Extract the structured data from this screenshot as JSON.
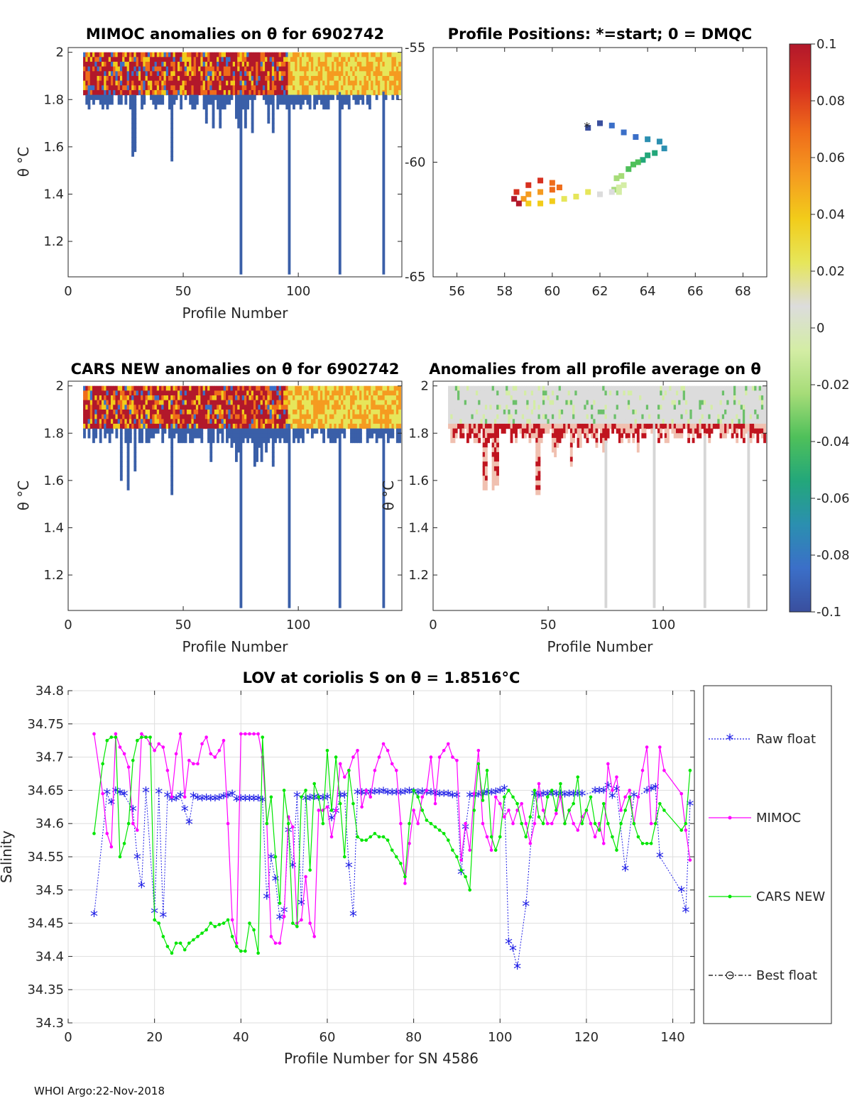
{
  "footer": "WHOI Argo:22-Nov-2018",
  "colorbar": {
    "ticks": [
      "0.1",
      "0.08",
      "0.06",
      "0.04",
      "0.02",
      "0",
      "-0.02",
      "-0.04",
      "-0.06",
      "-0.08",
      "-0.1"
    ],
    "colors": [
      "#b2182b",
      "#d7301f",
      "#ef6c1a",
      "#f59b20",
      "#f2cc1a",
      "#e6e65a",
      "#dcdcdc",
      "#d4eda5",
      "#a6dc78",
      "#4fc05a",
      "#23a77a",
      "#2b8fb0",
      "#3b6fc8",
      "#3a4f9e"
    ]
  },
  "chart_data": [
    {
      "id": "mimoc",
      "type": "heatmap",
      "title": "MIMOC anomalies on θ  for 6902742",
      "xlabel": "Profile Number",
      "ylabel": "θ °C",
      "xlim": [
        0,
        145
      ],
      "ylim": [
        1.05,
        2.02
      ],
      "xticks": [
        "0",
        "50",
        "100"
      ],
      "yticks": [
        "1.2",
        "1.4",
        "1.6",
        "1.8",
        "2"
      ]
    },
    {
      "id": "positions",
      "type": "scatter",
      "title": "Profile Positions: *=start; 0 = DMQC",
      "xlim": [
        55,
        69
      ],
      "ylim": [
        -65,
        -55
      ],
      "xticks": [
        "56",
        "58",
        "60",
        "62",
        "64",
        "66",
        "68"
      ],
      "yticks": [
        "-55",
        "-60",
        "-65"
      ],
      "track": {
        "lon": [
          61.5,
          62.0,
          62.5,
          63.0,
          63.5,
          64.0,
          64.5,
          64.7,
          64.3,
          64.0,
          63.8,
          63.6,
          63.4,
          63.2,
          62.9,
          62.7,
          62.6,
          62.8,
          63.0,
          62.8,
          62.5,
          62.0,
          61.5,
          61.0,
          60.5,
          60.0,
          59.5,
          59.0,
          58.8,
          59.0,
          59.5,
          60.0,
          60.3,
          60.0,
          59.5,
          59.0,
          58.5,
          58.4,
          58.6
        ],
        "lat": [
          -58.5,
          -58.3,
          -58.4,
          -58.7,
          -58.9,
          -59.0,
          -59.1,
          -59.4,
          -59.6,
          -59.7,
          -59.9,
          -60.0,
          -60.1,
          -60.3,
          -60.6,
          -60.7,
          -61.2,
          -61.3,
          -61.0,
          -61.1,
          -61.3,
          -61.4,
          -61.3,
          -61.5,
          -61.6,
          -61.7,
          -61.8,
          -61.8,
          -61.6,
          -61.4,
          -61.3,
          -61.2,
          -61.1,
          -60.9,
          -60.8,
          -61.0,
          -61.3,
          -61.6,
          -61.8
        ]
      }
    },
    {
      "id": "cars",
      "type": "heatmap",
      "title": "CARS NEW anomalies on θ for 6902742",
      "xlabel": "Profile Number",
      "ylabel": "θ °C",
      "xlim": [
        0,
        145
      ],
      "ylim": [
        1.05,
        2.02
      ],
      "xticks": [
        "0",
        "50",
        "100"
      ],
      "yticks": [
        "1.2",
        "1.4",
        "1.6",
        "1.8",
        "2"
      ]
    },
    {
      "id": "allavg",
      "type": "heatmap",
      "title": "Anomalies from all profile average on θ",
      "xlabel": "Profile Number",
      "ylabel": "θ °C",
      "xlim": [
        0,
        145
      ],
      "ylim": [
        1.05,
        2.02
      ],
      "xticks": [
        "0",
        "50",
        "100"
      ],
      "yticks": [
        "1.2",
        "1.4",
        "1.6",
        "1.8",
        "2"
      ]
    },
    {
      "id": "lov",
      "type": "line",
      "title": "LOV at coriolis S on θ = 1.8516°C",
      "xlabel": "Profile Number for SN 4586",
      "ylabel": "Salinity",
      "xlim": [
        0,
        145
      ],
      "ylim": [
        34.3,
        34.8
      ],
      "xticks": [
        "0",
        "20",
        "40",
        "60",
        "80",
        "100",
        "120",
        "140"
      ],
      "yticks": [
        "34.3",
        "34.35",
        "34.4",
        "34.45",
        "34.5",
        "34.55",
        "34.6",
        "34.65",
        "34.7",
        "34.75",
        "34.8"
      ],
      "series": [
        {
          "name": "Raw float",
          "color": "#1f1fe6",
          "x": [
            6,
            9,
            10,
            11,
            12,
            13,
            15,
            16,
            17,
            18,
            20,
            21,
            22,
            23,
            24,
            25,
            26,
            27,
            28,
            29,
            30,
            31,
            32,
            33,
            34,
            35,
            36,
            37,
            38,
            39,
            40,
            41,
            42,
            43,
            44,
            45,
            46,
            47,
            48,
            49,
            50,
            51,
            52,
            53,
            54,
            55,
            56,
            57,
            58,
            59,
            60,
            61,
            62,
            63,
            64,
            65,
            66,
            67,
            68,
            69,
            70,
            71,
            72,
            73,
            74,
            75,
            76,
            77,
            78,
            79,
            80,
            81,
            82,
            83,
            84,
            85,
            86,
            87,
            88,
            89,
            90,
            91,
            92,
            93,
            94,
            95,
            96,
            97,
            98,
            99,
            100,
            101,
            102,
            103,
            104,
            106,
            108,
            109,
            110,
            111,
            112,
            113,
            114,
            115,
            116,
            117,
            118,
            119,
            122,
            123,
            124,
            125,
            126,
            127,
            129,
            131,
            134,
            135,
            136,
            137,
            142,
            143,
            144
          ],
          "values": [
            34.462,
            34.645,
            34.63,
            34.648,
            34.645,
            34.643,
            34.62,
            34.548,
            34.505,
            34.648,
            34.466,
            34.646,
            34.46,
            34.641,
            34.635,
            34.636,
            34.641,
            34.62,
            34.6,
            34.64,
            34.637,
            34.636,
            34.637,
            34.636,
            34.636,
            34.637,
            34.639,
            34.641,
            34.643,
            34.635,
            34.636,
            34.636,
            34.636,
            34.636,
            34.636,
            34.634,
            34.488,
            34.548,
            34.515,
            34.457,
            34.468,
            34.588,
            34.535,
            34.641,
            34.479,
            34.636,
            34.637,
            34.638,
            34.637,
            34.637,
            34.638,
            34.606,
            34.617,
            34.641,
            34.641,
            34.535,
            34.462,
            34.645,
            34.645,
            34.645,
            34.645,
            34.646,
            34.646,
            34.647,
            34.645,
            34.645,
            34.645,
            34.645,
            34.646,
            34.647,
            34.646,
            34.645,
            34.646,
            34.645,
            34.645,
            34.644,
            34.643,
            34.643,
            34.643,
            34.641,
            34.641,
            34.525,
            34.593,
            34.641,
            34.641,
            34.642,
            34.643,
            34.645,
            34.645,
            34.646,
            34.648,
            34.651,
            34.42,
            34.41,
            34.383,
            34.477,
            34.643,
            34.641,
            34.643,
            34.643,
            34.644,
            34.643,
            34.643,
            34.642,
            34.643,
            34.643,
            34.643,
            34.643,
            34.648,
            34.648,
            34.648,
            34.655,
            34.64,
            34.65,
            34.53,
            34.641,
            34.648,
            34.651,
            34.653,
            34.55,
            34.498,
            34.468,
            34.628
          ]
        },
        {
          "name": "MIMOC",
          "color": "#ff00ff",
          "x": [
            6,
            8,
            9,
            10,
            11,
            12,
            13,
            14,
            15,
            16,
            17,
            18,
            19,
            20,
            21,
            22,
            23,
            24,
            25,
            26,
            27,
            28,
            29,
            30,
            31,
            32,
            33,
            34,
            35,
            36,
            37,
            38,
            39,
            40,
            41,
            42,
            43,
            44,
            45,
            46,
            47,
            48,
            49,
            50,
            51,
            52,
            53,
            54,
            55,
            56,
            57,
            58,
            59,
            60,
            61,
            62,
            63,
            64,
            65,
            66,
            67,
            68,
            69,
            70,
            71,
            72,
            73,
            74,
            75,
            76,
            77,
            78,
            79,
            80,
            81,
            82,
            83,
            84,
            85,
            86,
            87,
            88,
            89,
            90,
            91,
            92,
            93,
            94,
            95,
            96,
            97,
            98,
            99,
            100,
            101,
            102,
            103,
            104,
            105,
            106,
            107,
            108,
            109,
            110,
            111,
            112,
            113,
            114,
            115,
            116,
            117,
            118,
            119,
            120,
            121,
            122,
            123,
            124,
            125,
            126,
            127,
            128,
            129,
            130,
            131,
            132,
            133,
            134,
            135,
            136,
            137,
            138,
            142,
            143,
            144
          ],
          "values": [
            34.735,
            34.645,
            34.585,
            34.565,
            34.735,
            34.715,
            34.705,
            34.685,
            34.6,
            34.59,
            34.735,
            34.73,
            34.72,
            34.71,
            34.72,
            34.715,
            34.68,
            34.64,
            34.705,
            34.735,
            34.64,
            34.695,
            34.69,
            34.69,
            34.72,
            34.73,
            34.705,
            34.7,
            34.71,
            34.725,
            34.6,
            34.455,
            34.42,
            34.735,
            34.735,
            34.735,
            34.735,
            34.735,
            34.7,
            34.6,
            34.43,
            34.42,
            34.42,
            34.46,
            34.61,
            34.595,
            34.45,
            34.455,
            34.52,
            34.45,
            34.43,
            34.62,
            34.62,
            34.625,
            34.58,
            34.62,
            34.69,
            34.67,
            34.68,
            34.7,
            34.71,
            34.625,
            34.65,
            34.64,
            34.68,
            34.7,
            34.72,
            34.71,
            34.69,
            34.68,
            34.6,
            34.51,
            34.57,
            34.62,
            34.6,
            34.64,
            34.65,
            34.7,
            34.63,
            34.7,
            34.71,
            34.72,
            34.7,
            34.695,
            34.545,
            34.6,
            34.56,
            34.645,
            34.71,
            34.6,
            34.58,
            34.56,
            34.64,
            34.63,
            34.61,
            34.62,
            34.6,
            34.62,
            34.63,
            34.6,
            34.57,
            34.6,
            34.66,
            34.62,
            34.6,
            34.6,
            34.615,
            34.64,
            34.6,
            34.62,
            34.6,
            34.59,
            34.61,
            34.62,
            34.6,
            34.58,
            34.6,
            34.57,
            34.69,
            34.65,
            34.67,
            34.62,
            34.64,
            34.65,
            34.6,
            34.64,
            34.68,
            34.715,
            34.6,
            34.6,
            34.715,
            34.68,
            34.645,
            34.59,
            34.545
          ]
        },
        {
          "name": "CARS NEW",
          "color": "#00e600",
          "x": [
            6,
            8,
            9,
            10,
            11,
            12,
            13,
            14,
            15,
            16,
            17,
            18,
            19,
            20,
            21,
            22,
            23,
            24,
            25,
            26,
            27,
            28,
            29,
            30,
            31,
            32,
            33,
            34,
            35,
            36,
            37,
            38,
            39,
            40,
            41,
            42,
            43,
            44,
            45,
            46,
            47,
            48,
            49,
            50,
            51,
            52,
            53,
            54,
            55,
            56,
            57,
            58,
            59,
            60,
            61,
            62,
            63,
            64,
            65,
            66,
            67,
            68,
            69,
            70,
            71,
            72,
            73,
            74,
            75,
            76,
            77,
            78,
            79,
            80,
            81,
            82,
            83,
            84,
            85,
            86,
            87,
            88,
            89,
            90,
            91,
            92,
            93,
            94,
            95,
            96,
            97,
            98,
            99,
            100,
            101,
            102,
            103,
            104,
            105,
            106,
            107,
            108,
            109,
            110,
            111,
            112,
            113,
            114,
            115,
            116,
            117,
            118,
            119,
            120,
            121,
            122,
            123,
            124,
            125,
            126,
            127,
            128,
            129,
            130,
            131,
            132,
            133,
            134,
            135,
            136,
            137,
            138,
            142,
            143,
            144
          ],
          "values": [
            34.585,
            34.69,
            34.725,
            34.73,
            34.73,
            34.55,
            34.57,
            34.6,
            34.695,
            34.725,
            34.73,
            34.73,
            34.73,
            34.455,
            34.45,
            34.43,
            34.415,
            34.405,
            34.42,
            34.42,
            34.41,
            34.42,
            34.425,
            34.43,
            34.435,
            34.44,
            34.45,
            34.445,
            34.448,
            34.45,
            34.455,
            34.43,
            34.415,
            34.408,
            34.408,
            34.45,
            34.44,
            34.405,
            34.73,
            34.6,
            34.64,
            34.55,
            34.48,
            34.65,
            34.6,
            34.45,
            34.445,
            34.64,
            34.65,
            34.53,
            34.66,
            34.64,
            34.6,
            34.71,
            34.62,
            34.7,
            34.63,
            34.55,
            34.68,
            34.63,
            34.58,
            34.575,
            34.575,
            34.58,
            34.585,
            34.58,
            34.58,
            34.575,
            34.56,
            34.55,
            34.54,
            34.52,
            34.6,
            34.65,
            34.64,
            34.62,
            34.605,
            34.6,
            34.595,
            34.59,
            34.585,
            34.575,
            34.56,
            34.55,
            34.53,
            34.52,
            34.5,
            34.62,
            34.69,
            34.635,
            34.68,
            34.58,
            34.56,
            34.58,
            34.64,
            34.65,
            34.64,
            34.63,
            34.6,
            34.58,
            34.61,
            34.65,
            34.61,
            34.6,
            34.64,
            34.65,
            34.62,
            34.66,
            34.6,
            34.62,
            34.63,
            34.67,
            34.6,
            34.62,
            34.64,
            34.6,
            34.59,
            34.63,
            34.6,
            34.58,
            34.56,
            34.6,
            34.62,
            34.64,
            34.6,
            34.58,
            34.57,
            34.57,
            34.57,
            34.6,
            34.63,
            34.62,
            34.59,
            34.6,
            34.68
          ]
        },
        {
          "name": "Best float",
          "color": "#000000",
          "x": [],
          "values": []
        }
      ]
    }
  ]
}
